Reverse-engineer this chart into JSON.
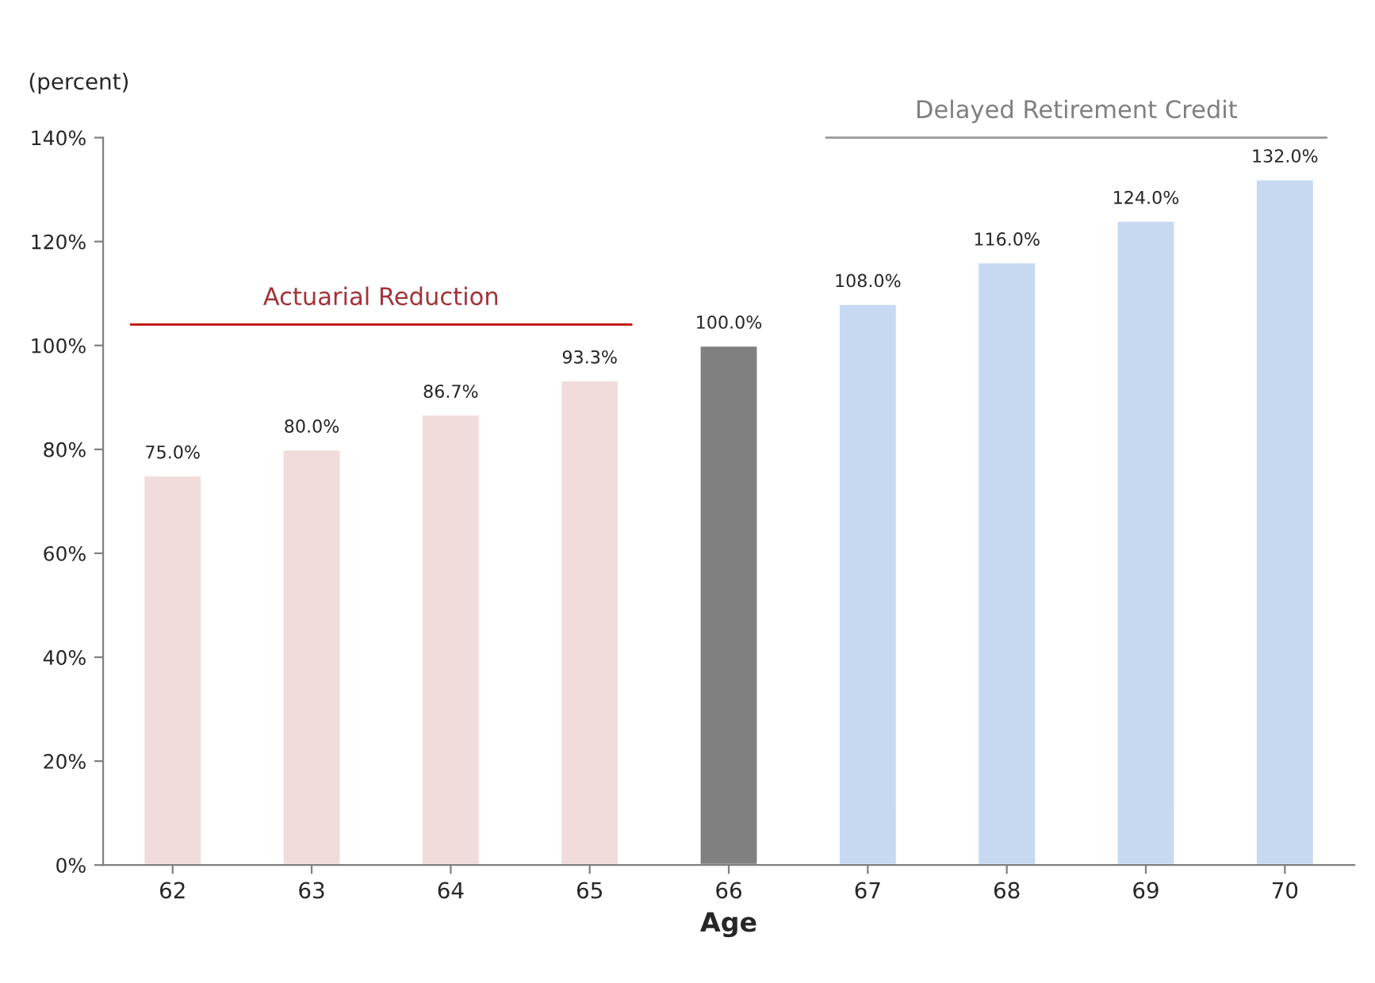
{
  "chart_data": {
    "type": "bar",
    "xlabel": "Age",
    "ylabel": "(percent)",
    "categories": [
      "62",
      "63",
      "64",
      "65",
      "66",
      "67",
      "68",
      "69",
      "70"
    ],
    "values": [
      75.0,
      80.0,
      86.7,
      93.3,
      100.0,
      108.0,
      116.0,
      124.0,
      132.0
    ],
    "colors": [
      "#f2dcdb",
      "#f2dcdb",
      "#f2dcdb",
      "#f2dcdb",
      "#808080",
      "#c6d9f1",
      "#c6d9f1",
      "#c6d9f1",
      "#c6d9f1"
    ],
    "value_labels": [
      "75.0%",
      "80.0%",
      "86.7%",
      "93.3%",
      "100.0%",
      "108.0%",
      "116.0%",
      "124.0%",
      "132.0%"
    ],
    "ylim": [
      0,
      140
    ],
    "yticks": [
      {
        "value": 0,
        "label": "0%"
      },
      {
        "value": 20,
        "label": "20%"
      },
      {
        "value": 40,
        "label": "40%"
      },
      {
        "value": 60,
        "label": "60%"
      },
      {
        "value": 80,
        "label": "80%"
      },
      {
        "value": 100,
        "label": "100%"
      },
      {
        "value": 120,
        "label": "120%"
      },
      {
        "value": 140,
        "label": "140%"
      }
    ],
    "annotations": [
      "Actuarial Reduction",
      "Delayed Retirement Credit"
    ],
    "grid": false,
    "legend": false
  }
}
